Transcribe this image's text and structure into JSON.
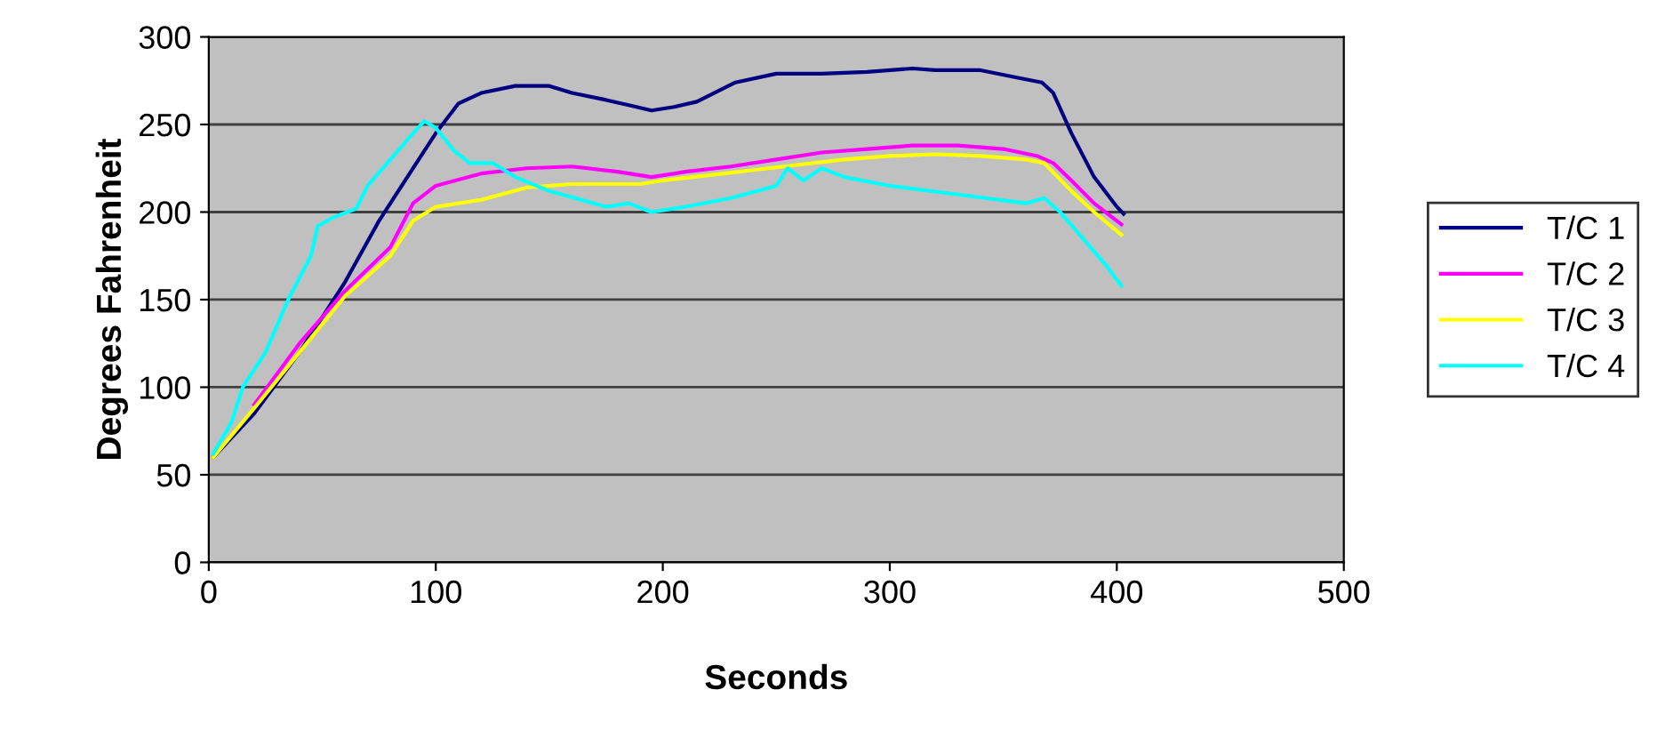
{
  "chart_data": {
    "type": "line",
    "xlabel": "Seconds",
    "ylabel": "Degrees Fahrenheit",
    "xlim": [
      0,
      500
    ],
    "xticks": [
      0,
      100,
      200,
      300,
      400,
      500
    ],
    "ylim": [
      0,
      300
    ],
    "yticks": [
      0,
      50,
      100,
      150,
      200,
      250,
      300
    ],
    "grid": "y",
    "legend": "right",
    "marker": "none",
    "line_style": "solid",
    "series": [
      {
        "name": "T/C 1",
        "color": "#000080",
        "x": [
          2,
          20,
          40,
          60,
          75,
          90,
          100,
          110,
          120,
          135,
          150,
          160,
          175,
          185,
          195,
          205,
          215,
          232,
          250,
          270,
          290,
          310,
          320,
          340,
          355,
          367,
          372,
          380,
          390,
          400,
          403
        ],
        "values": [
          60,
          85,
          120,
          160,
          195,
          225,
          245,
          262,
          268,
          272,
          272,
          268,
          264,
          261,
          258,
          260,
          263,
          274,
          279,
          279,
          280,
          282,
          281,
          281,
          277,
          274,
          268,
          245,
          220,
          203,
          199
        ]
      },
      {
        "name": "T/C 2",
        "color": "#ff00ff",
        "x": [
          20,
          40,
          60,
          80,
          90,
          100,
          120,
          140,
          160,
          180,
          195,
          210,
          230,
          250,
          270,
          290,
          310,
          330,
          350,
          365,
          372,
          380,
          390,
          402
        ],
        "values": [
          90,
          125,
          155,
          180,
          205,
          215,
          222,
          225,
          226,
          223,
          220,
          223,
          226,
          230,
          234,
          236,
          238,
          238,
          236,
          232,
          228,
          218,
          205,
          193
        ]
      },
      {
        "name": "T/C 3",
        "color": "#ffff00",
        "x": [
          2,
          20,
          40,
          60,
          80,
          90,
          100,
          120,
          140,
          160,
          190,
          200,
          220,
          240,
          260,
          280,
          300,
          320,
          340,
          360,
          368,
          380,
          390,
          402
        ],
        "values": [
          60,
          88,
          120,
          152,
          175,
          195,
          203,
          207,
          214,
          216,
          216,
          218,
          221,
          224,
          227,
          230,
          232,
          233,
          232,
          230,
          228,
          212,
          200,
          187
        ]
      },
      {
        "name": "T/C 4",
        "color": "#00ffff",
        "x": [
          2,
          10,
          15,
          25,
          35,
          45,
          48,
          55,
          65,
          70,
          80,
          90,
          95,
          100,
          108,
          115,
          125,
          135,
          150,
          175,
          185,
          195,
          210,
          230,
          250,
          255,
          262,
          270,
          280,
          300,
          330,
          360,
          368,
          375,
          385,
          395,
          402
        ],
        "values": [
          62,
          80,
          100,
          120,
          150,
          175,
          192,
          197,
          202,
          215,
          230,
          245,
          252,
          248,
          235,
          228,
          228,
          220,
          212,
          203,
          205,
          200,
          203,
          208,
          215,
          225,
          218,
          225,
          220,
          215,
          210,
          205,
          208,
          200,
          185,
          170,
          158
        ]
      }
    ]
  }
}
